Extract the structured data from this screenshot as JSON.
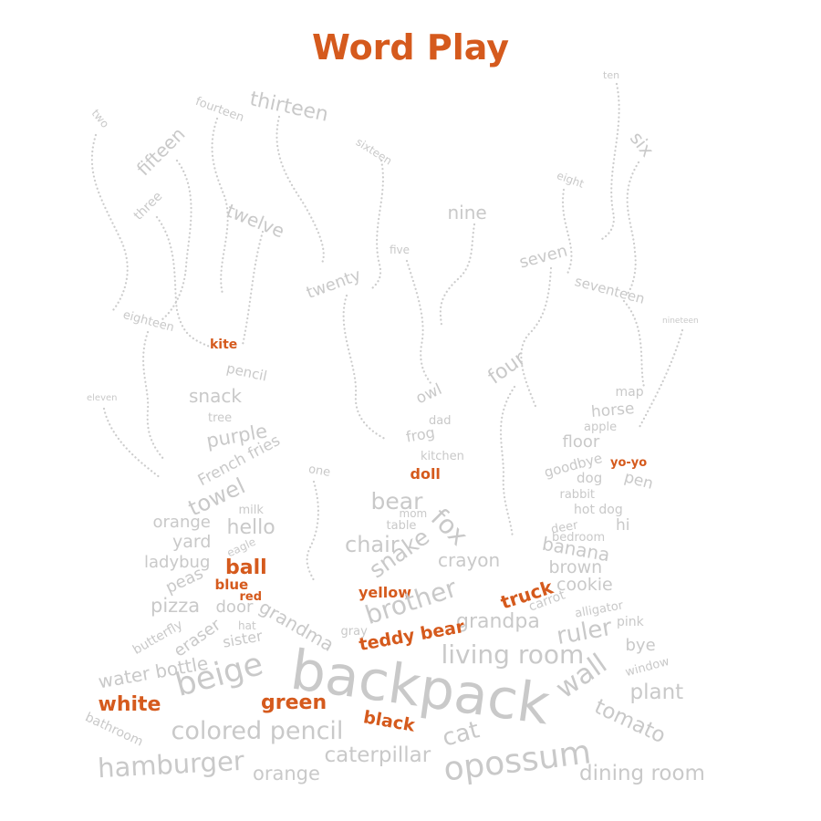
{
  "title": "Word Play",
  "colors": {
    "accent": "#D55A1D",
    "word": "#C9C9C9",
    "trail": "#CCCCCC",
    "background": "#FFFFFF"
  },
  "highlighted_words": [
    "kite",
    "doll",
    "yo-yo",
    "ball",
    "blue",
    "red",
    "yellow",
    "truck",
    "teddy bear",
    "white",
    "green",
    "black"
  ],
  "words": [
    "two",
    "fourteen",
    "thirteen",
    "ten",
    "fifteen",
    "sixteen",
    "six",
    "three",
    "twelve",
    "eight",
    "nine",
    "five",
    "twenty",
    "seven",
    "seventeen",
    "eighteen",
    "nineteen",
    "kite",
    "pencil",
    "four",
    "snack",
    "owl",
    "map",
    "horse",
    "eleven",
    "tree",
    "dad",
    "apple",
    "purple",
    "frog",
    "floor",
    "French fries",
    "kitchen",
    "goodbye",
    "yo-yo",
    "one",
    "doll",
    "dog",
    "pen",
    "towel",
    "rabbit",
    "milk",
    "bear",
    "mom",
    "hot dog",
    "hello",
    "orange",
    "fox",
    "deer",
    "hi",
    "table",
    "bedroom",
    "yard",
    "eagle",
    "chair",
    "snake",
    "banana",
    "ladybug",
    "crayon",
    "brown",
    "ball",
    "cookie",
    "peas",
    "blue",
    "red",
    "yellow",
    "truck",
    "carrot",
    "pizza",
    "door",
    "brother",
    "alligator",
    "butterfly",
    "hat",
    "grandpa",
    "pink",
    "eraser",
    "grandma",
    "ruler",
    "gray",
    "sister",
    "teddy bear",
    "bye",
    "water bottle",
    "living room",
    "window",
    "beige",
    "backpack",
    "wall",
    "plant",
    "white",
    "green",
    "tomato",
    "black",
    "bathroom",
    "colored pencil",
    "cat",
    "hamburger",
    "caterpillar",
    "opossum",
    "orange",
    "dining room"
  ]
}
